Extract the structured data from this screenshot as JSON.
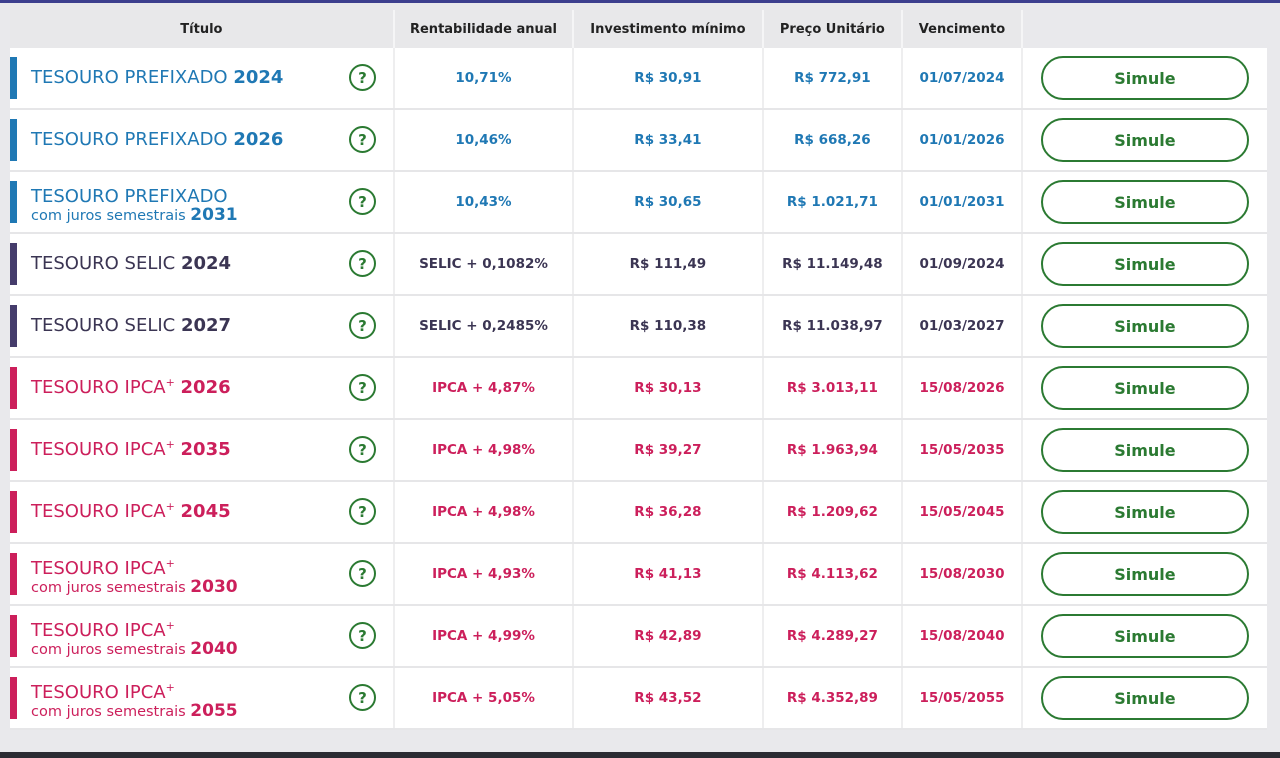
{
  "headers": {
    "titulo": "Título",
    "rentabilidade": "Rentabilidade anual",
    "investimento": "Investimento mínimo",
    "preco": "Preço Unitário",
    "vencimento": "Vencimento"
  },
  "help_glyph": "?",
  "button_label": "Simule",
  "colors": {
    "prefixado": "#1f78b4",
    "selic": "#453c6b",
    "ipca": "#cc1f5b",
    "action": "#2b7a32"
  },
  "rows": [
    {
      "name": "TESOURO PREFIXADO",
      "sup": "",
      "sub": "",
      "year": "2024",
      "rent": "10,71%",
      "inv": "R$ 30,91",
      "price": "R$ 772,91",
      "venc": "01/07/2024",
      "color": "blue"
    },
    {
      "name": "TESOURO PREFIXADO",
      "sup": "",
      "sub": "",
      "year": "2026",
      "rent": "10,46%",
      "inv": "R$ 33,41",
      "price": "R$ 668,26",
      "venc": "01/01/2026",
      "color": "blue"
    },
    {
      "name": "TESOURO PREFIXADO",
      "sup": "",
      "sub": "com juros semestrais",
      "year": "2031",
      "rent": "10,43%",
      "inv": "R$ 30,65",
      "price": "R$ 1.021,71",
      "venc": "01/01/2031",
      "color": "blue"
    },
    {
      "name": "TESOURO SELIC",
      "sup": "",
      "sub": "",
      "year": "2024",
      "rent": "SELIC + 0,1082%",
      "inv": "R$ 111,49",
      "price": "R$ 11.149,48",
      "venc": "01/09/2024",
      "color": "slate"
    },
    {
      "name": "TESOURO SELIC",
      "sup": "",
      "sub": "",
      "year": "2027",
      "rent": "SELIC + 0,2485%",
      "inv": "R$ 110,38",
      "price": "R$ 11.038,97",
      "venc": "01/03/2027",
      "color": "slate"
    },
    {
      "name": "TESOURO IPCA",
      "sup": "+",
      "sub": "",
      "year": "2026",
      "rent": "IPCA + 4,87%",
      "inv": "R$ 30,13",
      "price": "R$ 3.013,11",
      "venc": "15/08/2026",
      "color": "pink"
    },
    {
      "name": "TESOURO IPCA",
      "sup": "+",
      "sub": "",
      "year": "2035",
      "rent": "IPCA + 4,98%",
      "inv": "R$ 39,27",
      "price": "R$ 1.963,94",
      "venc": "15/05/2035",
      "color": "pink"
    },
    {
      "name": "TESOURO IPCA",
      "sup": "+",
      "sub": "",
      "year": "2045",
      "rent": "IPCA + 4,98%",
      "inv": "R$ 36,28",
      "price": "R$ 1.209,62",
      "venc": "15/05/2045",
      "color": "pink"
    },
    {
      "name": "TESOURO IPCA",
      "sup": "+",
      "sub": "com juros semestrais",
      "year": "2030",
      "rent": "IPCA + 4,93%",
      "inv": "R$ 41,13",
      "price": "R$ 4.113,62",
      "venc": "15/08/2030",
      "color": "pink"
    },
    {
      "name": "TESOURO IPCA",
      "sup": "+",
      "sub": "com juros semestrais",
      "year": "2040",
      "rent": "IPCA + 4,99%",
      "inv": "R$ 42,89",
      "price": "R$ 4.289,27",
      "venc": "15/08/2040",
      "color": "pink"
    },
    {
      "name": "TESOURO IPCA",
      "sup": "+",
      "sub": "com juros semestrais",
      "year": "2055",
      "rent": "IPCA + 5,05%",
      "inv": "R$ 43,52",
      "price": "R$ 4.352,89",
      "venc": "15/05/2055",
      "color": "pink"
    }
  ]
}
